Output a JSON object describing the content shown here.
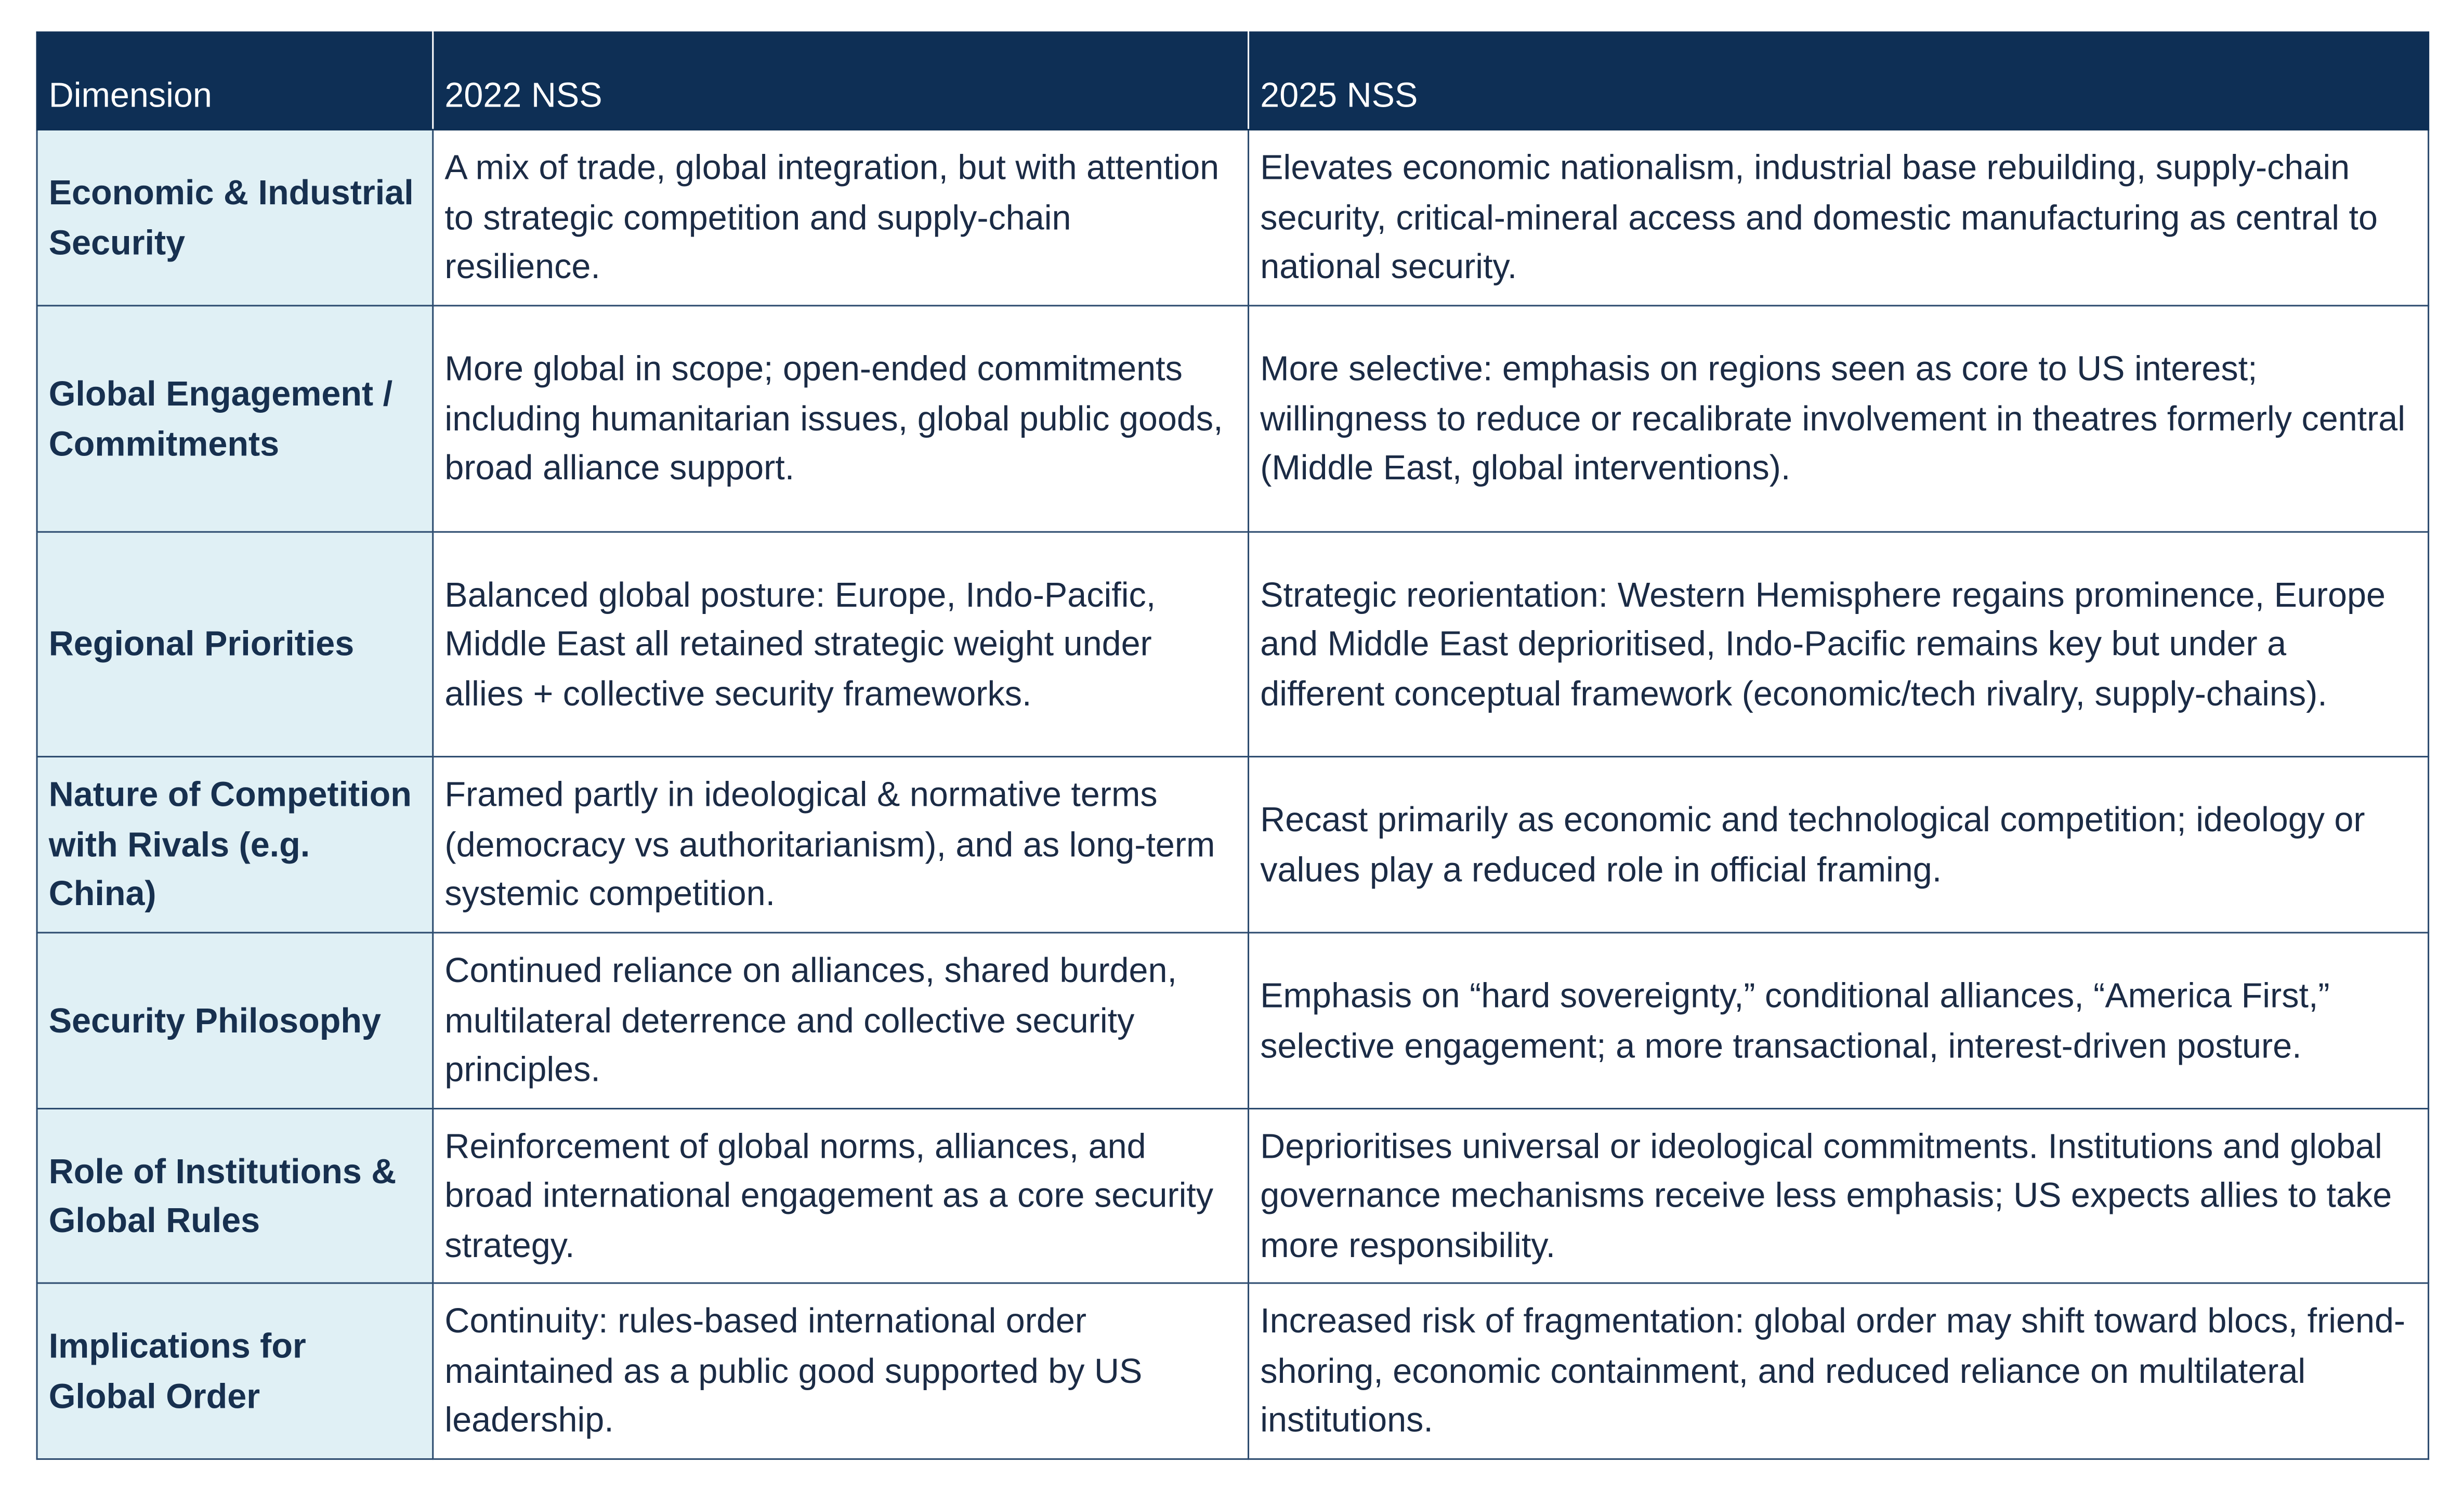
{
  "table": {
    "columns": [
      "Dimension",
      "2022 NSS",
      "2025 NSS"
    ],
    "rows": [
      [
        "Economic & Industrial Security",
        "A mix of trade, global integration, but with attention to strategic competition and supply-chain resilience.",
        "Elevates economic nationalism, industrial base rebuilding, supply-chain security, critical-mineral access and domestic manufacturing as central to national security."
      ],
      [
        "Global Engagement / Commitments",
        "More global in scope; open-ended commitments including humanitarian issues, global public goods, broad alliance support.",
        "More selective: emphasis on regions seen as core to US interest; willingness to reduce or recalibrate involvement in theatres formerly central (Middle East, global interventions)."
      ],
      [
        "Regional Priorities",
        "Balanced global posture: Europe, Indo-Pacific, Middle East all retained strategic weight under allies + collective security frameworks.",
        "Strategic reorientation: Western Hemisphere regains prominence, Europe and Middle East deprioritised, Indo-Pacific remains key but under a different conceptual framework (economic/tech rivalry, supply-chains)."
      ],
      [
        "Nature of Competition with Rivals (e.g. China)",
        "Framed partly in ideological & normative terms (democracy vs authoritarianism), and as long-term systemic competition.",
        "Recast primarily as economic and technological competition; ideology or values play a reduced role in official framing."
      ],
      [
        "Security Philosophy",
        "Continued reliance on alliances, shared burden, multilateral deterrence and collective security principles.",
        "Emphasis on “hard sovereignty,” conditional alliances, “America First,” selective engagement; a more transactional, interest-driven posture."
      ],
      [
        "Role of Institutions & Global Rules",
        "Reinforcement of global norms, alliances, and broad international engagement as a core security strategy.",
        "Deprioritises universal or ideological commitments. Institutions and global governance mechanisms receive less emphasis; US expects allies to take more responsibility."
      ],
      [
        "Implications for Global Order",
        "Continuity: rules-based international order maintained as a public good supported by US leadership.",
        "Increased risk of fragmentation: global order may shift toward blocs, friend-shoring, economic containment, and reduced reliance on multilateral institutions."
      ]
    ]
  }
}
